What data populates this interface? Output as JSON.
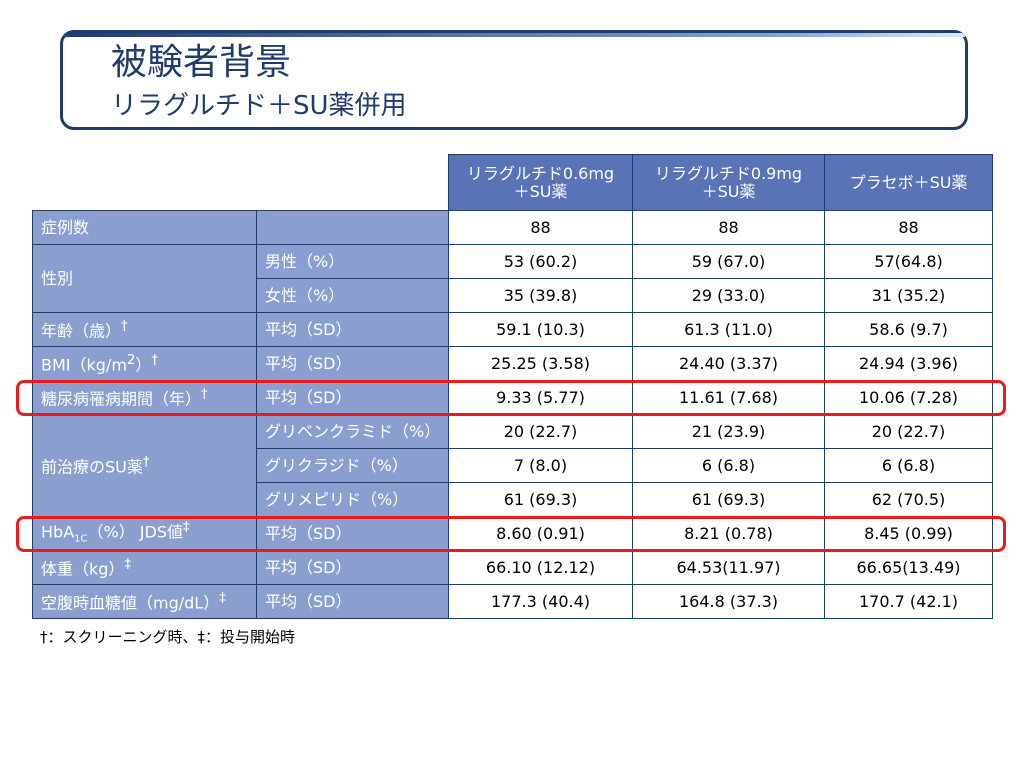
{
  "title": {
    "main": "被験者背景",
    "sub": "リラグルチド＋SU薬併用"
  },
  "columns": [
    {
      "line1": "リラグルチド0.6mg",
      "line2": "＋SU薬"
    },
    {
      "line1": "リラグルチド0.9mg",
      "line2": "＋SU薬"
    },
    {
      "line1": "プラセボ＋SU薬",
      "line2": ""
    }
  ],
  "rows": {
    "cases": {
      "label": "症例数",
      "values": [
        "88",
        "88",
        "88"
      ]
    },
    "sex": {
      "label": "性別",
      "male": {
        "label": "男性（%）",
        "values": [
          "53 (60.2)",
          "59 (67.0)",
          "57(64.8)"
        ]
      },
      "female": {
        "label": "女性（%）",
        "values": [
          "35 (39.8)",
          "29 (33.0)",
          "31 (35.2)"
        ]
      }
    },
    "age": {
      "label": "年齢（歳）",
      "mark": "†",
      "sub": "平均（SD）",
      "values": [
        "59.1 (10.3)",
        "61.3 (11.0)",
        "58.6 (9.7)"
      ]
    },
    "bmi": {
      "label": "BMI（kg/m",
      "sup": "2",
      "label_end": "）",
      "mark": "†",
      "sub": "平均（SD）",
      "values": [
        "25.25 (3.58)",
        "24.40 (3.37)",
        "24.94 (3.96)"
      ]
    },
    "duration": {
      "label": "糖尿病罹病期間（年）",
      "mark": "†",
      "sub": "平均（SD）",
      "values": [
        "9.33 (5.77)",
        "11.61 (7.68)",
        "10.06 (7.28)"
      ]
    },
    "prior_su": {
      "label": "前治療のSU薬",
      "mark": "†",
      "items": [
        {
          "label": "グリベンクラミド（%）",
          "values": [
            "20 (22.7)",
            "21 (23.9)",
            "20 (22.7)"
          ]
        },
        {
          "label": "グリクラジド（%）",
          "values": [
            "7 (8.0)",
            "6 (6.8)",
            "6 (6.8)"
          ]
        },
        {
          "label": "グリメピリド（%）",
          "values": [
            "61 (69.3)",
            "61 (69.3)",
            "62 (70.5)"
          ]
        }
      ]
    },
    "hba1c": {
      "label_a": "HbA",
      "label_sub": "1C",
      "label_b": "（%） JDS値",
      "mark": "‡",
      "sub": "平均（SD）",
      "values": [
        "8.60 (0.91)",
        "8.21 (0.78)",
        "8.45 (0.99)"
      ]
    },
    "weight": {
      "label": "体重（kg）",
      "mark": "‡",
      "sub": "平均（SD）",
      "values": [
        "66.10 (12.12)",
        "64.53(11.97)",
        "66.65(13.49)"
      ]
    },
    "fpg": {
      "label": "空腹時血糖値（mg/dL）",
      "mark": "‡",
      "sub": "平均（SD）",
      "values": [
        "177.3 (40.4)",
        "164.8 (37.3)",
        "170.7 (42.1)"
      ]
    }
  },
  "footnote": "†：スクリーニング時、‡：投与開始時",
  "highlight_color": "#e81c1c"
}
